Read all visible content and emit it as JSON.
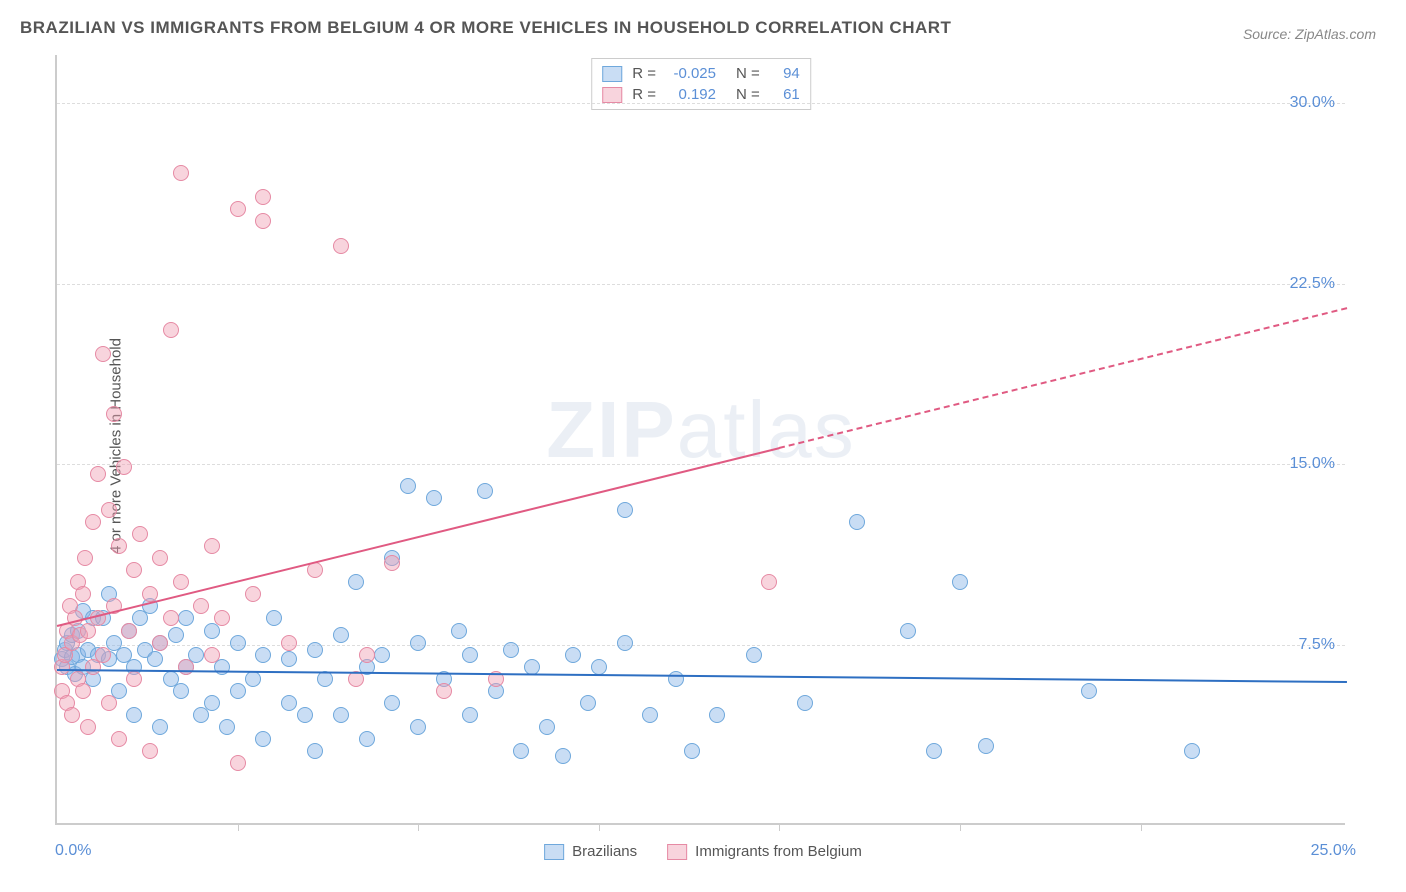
{
  "title": "BRAZILIAN VS IMMIGRANTS FROM BELGIUM 4 OR MORE VEHICLES IN HOUSEHOLD CORRELATION CHART",
  "source": "Source: ZipAtlas.com",
  "ylabel": "4 or more Vehicles in Household",
  "watermark_bold": "ZIP",
  "watermark_thin": "atlas",
  "chart": {
    "type": "scatter",
    "xlim": [
      0,
      25
    ],
    "ylim": [
      0,
      32
    ],
    "x_origin_label": "0.0%",
    "x_max_label": "25.0%",
    "ytick_labels": [
      "7.5%",
      "15.0%",
      "22.5%",
      "30.0%"
    ],
    "ytick_values": [
      7.5,
      15.0,
      22.5,
      30.0
    ],
    "x_tick_positions": [
      3.5,
      7,
      10.5,
      14,
      17.5,
      21
    ],
    "grid_color": "#dddddd",
    "axis_color": "#cccccc",
    "background_color": "#ffffff",
    "point_radius": 8,
    "series": [
      {
        "name": "Brazilians",
        "color_fill": "rgba(135,180,230,0.45)",
        "color_stroke": "#6fa8dc",
        "R": "-0.025",
        "N": "94",
        "trend": {
          "x1": 0,
          "y1": 6.5,
          "x2": 25,
          "y2": 6.0,
          "color": "#2e6fc2",
          "dash_from_x": 25
        },
        "points": [
          [
            0.1,
            6.8
          ],
          [
            0.15,
            7.2
          ],
          [
            0.2,
            6.5
          ],
          [
            0.2,
            7.5
          ],
          [
            0.3,
            6.9
          ],
          [
            0.3,
            7.8
          ],
          [
            0.35,
            6.2
          ],
          [
            0.4,
            8.0
          ],
          [
            0.4,
            7.0
          ],
          [
            0.5,
            6.5
          ],
          [
            0.5,
            8.8
          ],
          [
            0.6,
            7.2
          ],
          [
            0.7,
            8.5
          ],
          [
            0.7,
            6.0
          ],
          [
            0.8,
            7.0
          ],
          [
            0.9,
            8.5
          ],
          [
            1.0,
            9.5
          ],
          [
            1.0,
            6.8
          ],
          [
            1.1,
            7.5
          ],
          [
            1.2,
            5.5
          ],
          [
            1.3,
            7.0
          ],
          [
            1.4,
            8.0
          ],
          [
            1.5,
            6.5
          ],
          [
            1.5,
            4.5
          ],
          [
            1.6,
            8.5
          ],
          [
            1.7,
            7.2
          ],
          [
            1.8,
            9.0
          ],
          [
            1.9,
            6.8
          ],
          [
            2.0,
            7.5
          ],
          [
            2.0,
            4.0
          ],
          [
            2.2,
            6.0
          ],
          [
            2.3,
            7.8
          ],
          [
            2.4,
            5.5
          ],
          [
            2.5,
            6.5
          ],
          [
            2.5,
            8.5
          ],
          [
            2.7,
            7.0
          ],
          [
            2.8,
            4.5
          ],
          [
            3.0,
            8.0
          ],
          [
            3.0,
            5.0
          ],
          [
            3.2,
            6.5
          ],
          [
            3.3,
            4.0
          ],
          [
            3.5,
            7.5
          ],
          [
            3.5,
            5.5
          ],
          [
            3.8,
            6.0
          ],
          [
            4.0,
            7.0
          ],
          [
            4.0,
            3.5
          ],
          [
            4.2,
            8.5
          ],
          [
            4.5,
            5.0
          ],
          [
            4.5,
            6.8
          ],
          [
            4.8,
            4.5
          ],
          [
            5.0,
            7.2
          ],
          [
            5.0,
            3.0
          ],
          [
            5.2,
            6.0
          ],
          [
            5.5,
            7.8
          ],
          [
            5.5,
            4.5
          ],
          [
            5.8,
            10.0
          ],
          [
            6.0,
            6.5
          ],
          [
            6.0,
            3.5
          ],
          [
            6.3,
            7.0
          ],
          [
            6.5,
            11.0
          ],
          [
            6.5,
            5.0
          ],
          [
            6.8,
            14.0
          ],
          [
            7.0,
            7.5
          ],
          [
            7.0,
            4.0
          ],
          [
            7.3,
            13.5
          ],
          [
            7.5,
            6.0
          ],
          [
            7.8,
            8.0
          ],
          [
            8.0,
            7.0
          ],
          [
            8.0,
            4.5
          ],
          [
            8.3,
            13.8
          ],
          [
            8.5,
            5.5
          ],
          [
            8.8,
            7.2
          ],
          [
            9.0,
            3.0
          ],
          [
            9.2,
            6.5
          ],
          [
            9.5,
            4.0
          ],
          [
            9.8,
            2.8
          ],
          [
            10.0,
            7.0
          ],
          [
            10.3,
            5.0
          ],
          [
            10.5,
            6.5
          ],
          [
            11.0,
            7.5
          ],
          [
            11.0,
            13.0
          ],
          [
            11.5,
            4.5
          ],
          [
            12.0,
            6.0
          ],
          [
            12.3,
            3.0
          ],
          [
            12.8,
            4.5
          ],
          [
            13.5,
            7.0
          ],
          [
            14.5,
            5.0
          ],
          [
            15.5,
            12.5
          ],
          [
            16.5,
            8.0
          ],
          [
            17.0,
            3.0
          ],
          [
            17.5,
            10.0
          ],
          [
            18.0,
            3.2
          ],
          [
            20.0,
            5.5
          ],
          [
            22.0,
            3.0
          ]
        ]
      },
      {
        "name": "Immigrants from Belgium",
        "color_fill": "rgba(240,160,180,0.45)",
        "color_stroke": "#e68aa4",
        "R": "0.192",
        "N": "61",
        "trend": {
          "x1": 0,
          "y1": 8.3,
          "x2": 25,
          "y2": 21.5,
          "color": "#e05a82",
          "dash_from_x": 14
        },
        "points": [
          [
            0.1,
            5.5
          ],
          [
            0.1,
            6.5
          ],
          [
            0.15,
            7.0
          ],
          [
            0.2,
            8.0
          ],
          [
            0.2,
            5.0
          ],
          [
            0.25,
            9.0
          ],
          [
            0.3,
            7.5
          ],
          [
            0.3,
            4.5
          ],
          [
            0.35,
            8.5
          ],
          [
            0.4,
            6.0
          ],
          [
            0.4,
            10.0
          ],
          [
            0.45,
            7.8
          ],
          [
            0.5,
            9.5
          ],
          [
            0.5,
            5.5
          ],
          [
            0.55,
            11.0
          ],
          [
            0.6,
            8.0
          ],
          [
            0.6,
            4.0
          ],
          [
            0.7,
            12.5
          ],
          [
            0.7,
            6.5
          ],
          [
            0.8,
            14.5
          ],
          [
            0.8,
            8.5
          ],
          [
            0.9,
            19.5
          ],
          [
            0.9,
            7.0
          ],
          [
            1.0,
            13.0
          ],
          [
            1.0,
            5.0
          ],
          [
            1.1,
            17.0
          ],
          [
            1.1,
            9.0
          ],
          [
            1.2,
            11.5
          ],
          [
            1.2,
            3.5
          ],
          [
            1.3,
            14.8
          ],
          [
            1.4,
            8.0
          ],
          [
            1.5,
            10.5
          ],
          [
            1.5,
            6.0
          ],
          [
            1.6,
            12.0
          ],
          [
            1.8,
            9.5
          ],
          [
            1.8,
            3.0
          ],
          [
            2.0,
            11.0
          ],
          [
            2.0,
            7.5
          ],
          [
            2.2,
            20.5
          ],
          [
            2.2,
            8.5
          ],
          [
            2.4,
            10.0
          ],
          [
            2.4,
            27.0
          ],
          [
            2.5,
            6.5
          ],
          [
            2.8,
            9.0
          ],
          [
            3.0,
            11.5
          ],
          [
            3.0,
            7.0
          ],
          [
            3.2,
            8.5
          ],
          [
            3.5,
            25.5
          ],
          [
            3.5,
            2.5
          ],
          [
            3.8,
            9.5
          ],
          [
            4.0,
            25.0
          ],
          [
            4.0,
            26.0
          ],
          [
            4.5,
            7.5
          ],
          [
            5.0,
            10.5
          ],
          [
            5.5,
            24.0
          ],
          [
            5.8,
            6.0
          ],
          [
            6.0,
            7.0
          ],
          [
            6.5,
            10.8
          ],
          [
            7.5,
            5.5
          ],
          [
            8.5,
            6.0
          ],
          [
            13.8,
            10.0
          ]
        ]
      }
    ]
  },
  "bottom_legend": [
    {
      "label": "Brazilians",
      "fill": "rgba(135,180,230,0.45)",
      "stroke": "#6fa8dc"
    },
    {
      "label": "Immigrants from Belgium",
      "fill": "rgba(240,160,180,0.45)",
      "stroke": "#e68aa4"
    }
  ],
  "stats_legend": {
    "r_label": "R =",
    "n_label": "N ="
  }
}
